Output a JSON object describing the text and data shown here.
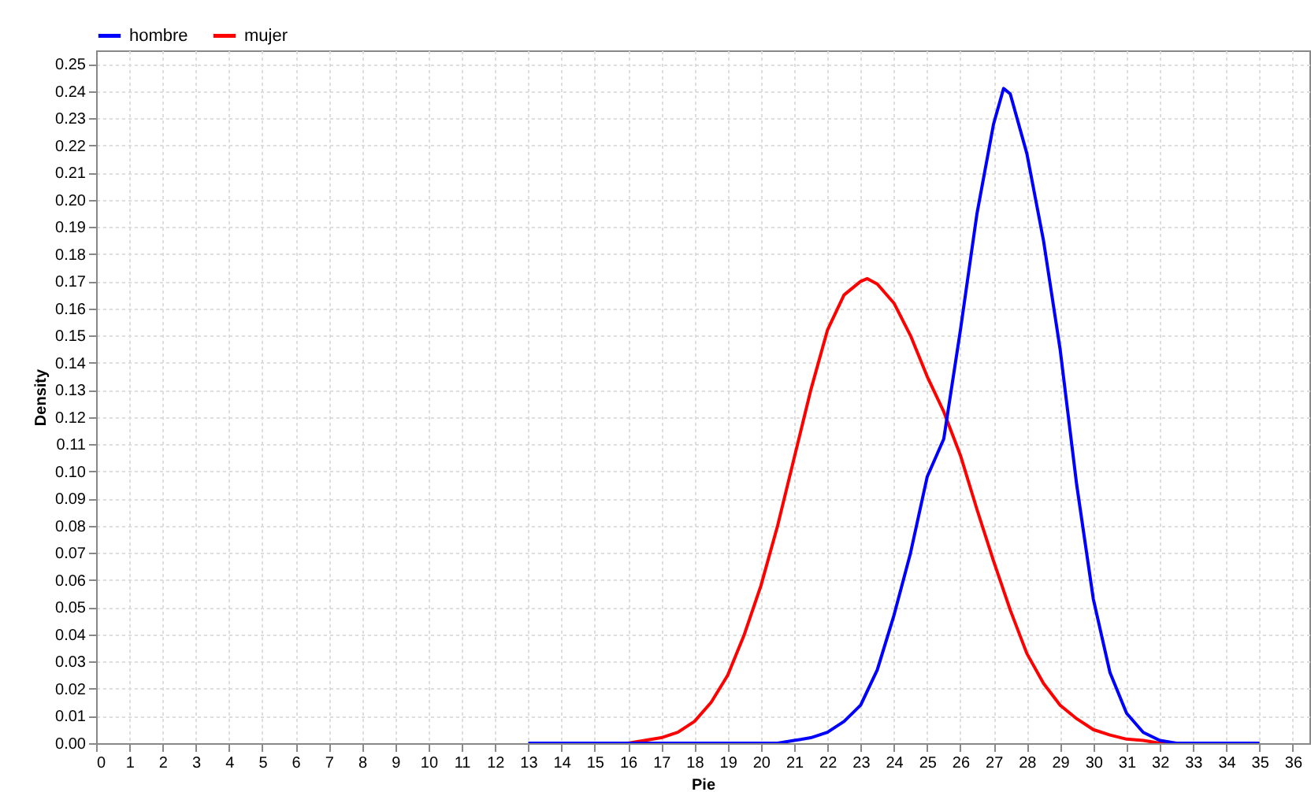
{
  "chart_data": {
    "type": "line",
    "xlabel": "Pie",
    "ylabel": "Density",
    "xlim": [
      0,
      36.5
    ],
    "xticks": [
      0,
      1,
      2,
      3,
      4,
      5,
      6,
      7,
      8,
      9,
      10,
      11,
      12,
      13,
      14,
      15,
      16,
      17,
      18,
      19,
      20,
      21,
      22,
      23,
      24,
      25,
      26,
      27,
      28,
      29,
      30,
      31,
      32,
      33,
      34,
      35,
      36
    ],
    "ylim": [
      0,
      0.255
    ],
    "yticks": [
      {
        "value": 0,
        "label": "0.00"
      },
      {
        "value": 0.01,
        "label": "0.01"
      },
      {
        "value": 0.02,
        "label": "0.02"
      },
      {
        "value": 0.03,
        "label": "0.03"
      },
      {
        "value": 0.04,
        "label": "0.04"
      },
      {
        "value": 0.05,
        "label": "0.05"
      },
      {
        "value": 0.06,
        "label": "0.06"
      },
      {
        "value": 0.07,
        "label": "0.07"
      },
      {
        "value": 0.08,
        "label": "0.08"
      },
      {
        "value": 0.09,
        "label": "0.09"
      },
      {
        "value": 0.1,
        "label": "0.10"
      },
      {
        "value": 0.11,
        "label": "0.11"
      },
      {
        "value": 0.12,
        "label": "0.12"
      },
      {
        "value": 0.13,
        "label": "0.13"
      },
      {
        "value": 0.14,
        "label": "0.14"
      },
      {
        "value": 0.15,
        "label": "0.15"
      },
      {
        "value": 0.16,
        "label": "0.16"
      },
      {
        "value": 0.17,
        "label": "0.17"
      },
      {
        "value": 0.18,
        "label": "0.18"
      },
      {
        "value": 0.19,
        "label": "0.19"
      },
      {
        "value": 0.2,
        "label": "0.20"
      },
      {
        "value": 0.21,
        "label": "0.21"
      },
      {
        "value": 0.22,
        "label": "0.22"
      },
      {
        "value": 0.23,
        "label": "0.23"
      },
      {
        "value": 0.24,
        "label": "0.24"
      },
      {
        "value": 0.25,
        "label": "0.25"
      }
    ],
    "grid": true,
    "legend": "top left",
    "series": [
      {
        "name": "hombre",
        "color": "#0000ff",
        "x": [
          13,
          15,
          17,
          19,
          20.5,
          21,
          21.5,
          22,
          22.5,
          23,
          23.5,
          24,
          24.5,
          25,
          25.5,
          26,
          26.5,
          27,
          27.3,
          27.5,
          28,
          28.5,
          29,
          29.5,
          30,
          30.5,
          31,
          31.5,
          32,
          32.5,
          33,
          34,
          35
        ],
        "values": [
          0,
          0,
          0,
          0,
          0,
          0.001,
          0.002,
          0.004,
          0.008,
          0.014,
          0.027,
          0.047,
          0.07,
          0.098,
          0.112,
          0.152,
          0.195,
          0.228,
          0.241,
          0.239,
          0.217,
          0.185,
          0.145,
          0.095,
          0.053,
          0.026,
          0.011,
          0.004,
          0.001,
          0,
          0,
          0,
          0
        ]
      },
      {
        "name": "mujer",
        "color": "#ff0000",
        "x": [
          16,
          16.5,
          17,
          17.5,
          18,
          18.5,
          19,
          19.5,
          20,
          20.5,
          21,
          21.5,
          22,
          22.5,
          23,
          23.2,
          23.5,
          24,
          24.5,
          25,
          25.5,
          26,
          26.5,
          27,
          27.5,
          28,
          28.5,
          29,
          29.5,
          30,
          30.5,
          31,
          31.5,
          32,
          32.5
        ],
        "values": [
          0,
          0.001,
          0.002,
          0.004,
          0.008,
          0.015,
          0.025,
          0.04,
          0.058,
          0.08,
          0.105,
          0.13,
          0.152,
          0.165,
          0.17,
          0.171,
          0.169,
          0.162,
          0.15,
          0.135,
          0.122,
          0.106,
          0.086,
          0.067,
          0.049,
          0.033,
          0.022,
          0.014,
          0.009,
          0.005,
          0.003,
          0.0015,
          0.001,
          0,
          0
        ]
      }
    ]
  }
}
